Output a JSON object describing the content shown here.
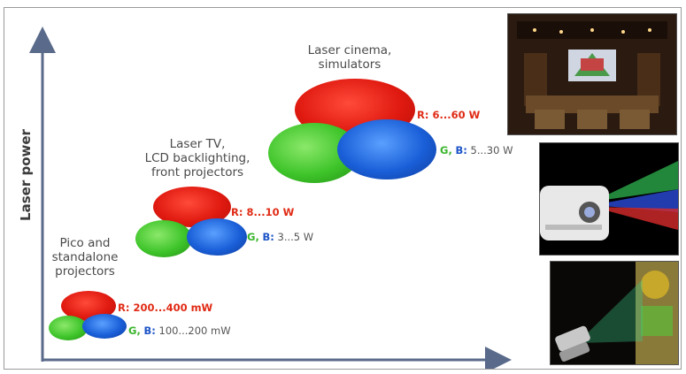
{
  "diagram": {
    "y_axis_label": "Laser power",
    "groups": [
      {
        "title_lines": [
          "Pico and",
          "standalone",
          "projectors"
        ],
        "red_power": "R: 200...400 mW",
        "gb_g": "G,",
        "gb_b": "B:",
        "gb_value": "100...200 mW"
      },
      {
        "title_lines": [
          "Laser TV,",
          "LCD backlighting,",
          "front projectors"
        ],
        "red_power": "R: 8...10 W",
        "gb_g": "G,",
        "gb_b": "B:",
        "gb_value": "3...5 W"
      },
      {
        "title_lines": [
          "Laser cinema,",
          "simulators"
        ],
        "red_power": "R: 6...60 W",
        "gb_g": "G,",
        "gb_b": "B:",
        "gb_value": "5...30 W"
      }
    ],
    "colors": {
      "red": "#e02a14",
      "green": "#3ab52c",
      "blue": "#1e55c8",
      "axis": "#5a6a8a"
    },
    "photos": [
      "home-cinema-photo",
      "laser-projector-photo",
      "pico-projector-phone-photo"
    ]
  }
}
